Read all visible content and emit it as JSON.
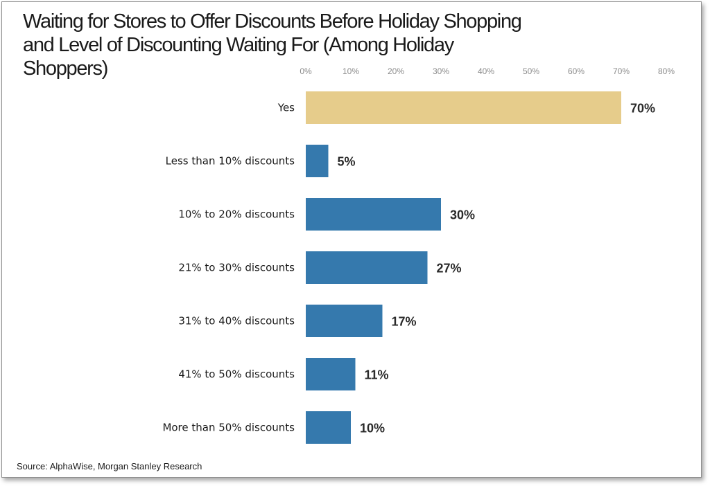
{
  "source": "Source: AlphaWise, Morgan Stanley Research",
  "colors": {
    "highlight": "#E6CC8B",
    "bar": "#3579AD"
  },
  "chart_data": {
    "type": "bar",
    "orientation": "horizontal",
    "title": "Waiting for Stores to Offer Discounts Before Holiday Shopping and Level of Discounting Waiting For (Among Holiday Shoppers)",
    "categories": [
      "Yes",
      "Less than 10% discounts",
      "10% to 20% discounts",
      "21% to 30% discounts",
      "31% to 40% discounts",
      "41% to 50% discounts",
      "More than 50% discounts"
    ],
    "values": [
      70,
      5,
      30,
      27,
      17,
      11,
      10
    ],
    "value_labels": [
      "70%",
      "5%",
      "30%",
      "27%",
      "17%",
      "11%",
      "10%"
    ],
    "highlighted_category": "Yes",
    "xlim": [
      0,
      80
    ],
    "xticks": [
      "0%",
      "10%",
      "20%",
      "30%",
      "40%",
      "50%",
      "60%",
      "70%",
      "80%"
    ],
    "axis_position": "top",
    "grid": false,
    "legend": false
  }
}
